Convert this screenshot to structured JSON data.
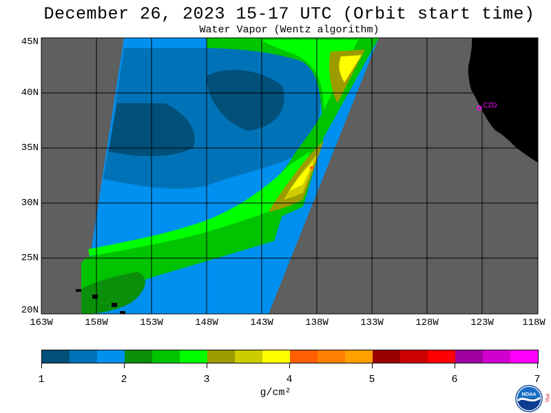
{
  "header": {
    "title": "December 26, 2023  15-17 UTC  (Orbit start time)",
    "subtitle": "Water Vapor (Wentz algorithm)"
  },
  "map": {
    "lat_labels": [
      "45N",
      "40N",
      "35N",
      "30N",
      "25N",
      "20N"
    ],
    "lon_labels": [
      "163W",
      "158W",
      "153W",
      "148W",
      "143W",
      "138W",
      "133W",
      "128W",
      "123W",
      "118W"
    ],
    "station_label": "CZD",
    "colors": {
      "nodata": "#5f5f5f",
      "land": "#000000",
      "grid": "#000000",
      "station": "#ff00ff"
    }
  },
  "colorbar": {
    "colors": [
      "#00507a",
      "#0073b8",
      "#0090f0",
      "#0a8f0a",
      "#00c400",
      "#00ff00",
      "#9c9c00",
      "#cccc00",
      "#ffff00",
      "#ff5f00",
      "#ff7f00",
      "#ff9f00",
      "#9b0000",
      "#cc0000",
      "#ff0000",
      "#a000a0",
      "#d000d0",
      "#ff00ff"
    ],
    "labels": [
      "1",
      "2",
      "3",
      "4",
      "5",
      "6",
      "7"
    ],
    "units": "g/cm²"
  },
  "logo": {
    "text": "NOAA",
    "side_text": "PSL",
    "icon": "noaa-logo-icon"
  }
}
